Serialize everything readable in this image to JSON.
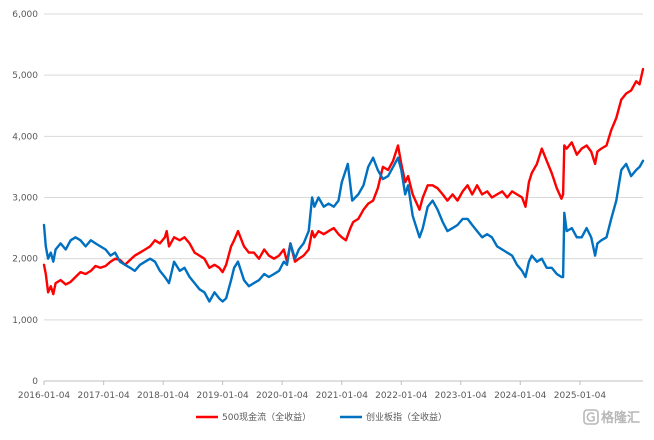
{
  "chart_data": {
    "type": "line",
    "title": "",
    "xlabel": "",
    "ylabel": "",
    "x_tick_labels": [
      "2016-01-04",
      "2017-01-04",
      "2018-01-04",
      "2019-01-04",
      "2020-01-04",
      "2021-01-04",
      "2022-01-04",
      "2023-01-04",
      "2024-01-04",
      "2025-01-04"
    ],
    "y_tick_labels": [
      "0",
      "1,000",
      "2,000",
      "3,000",
      "4,000",
      "5,000",
      "6,000"
    ],
    "ylim": [
      0,
      6000
    ],
    "xlim": [
      "2016-01-04",
      "2026-01-26"
    ],
    "grid": "horizontal",
    "legend_position": "bottom",
    "series": [
      {
        "name": "500现金流（全收益）",
        "color": "#ff0000",
        "points": [
          [
            "2016-01-04",
            1900
          ],
          [
            "2016-01-15",
            1750
          ],
          [
            "2016-01-29",
            1450
          ],
          [
            "2016-02-15",
            1550
          ],
          [
            "2016-03-01",
            1420
          ],
          [
            "2016-03-15",
            1600
          ],
          [
            "2016-04-15",
            1650
          ],
          [
            "2016-05-16",
            1580
          ],
          [
            "2016-06-15",
            1620
          ],
          [
            "2016-07-15",
            1700
          ],
          [
            "2016-08-15",
            1780
          ],
          [
            "2016-09-15",
            1750
          ],
          [
            "2016-10-17",
            1800
          ],
          [
            "2016-11-15",
            1880
          ],
          [
            "2016-12-15",
            1850
          ],
          [
            "2017-01-16",
            1880
          ],
          [
            "2017-02-15",
            1950
          ],
          [
            "2017-03-15",
            2000
          ],
          [
            "2017-04-14",
            1980
          ],
          [
            "2017-05-15",
            1900
          ],
          [
            "2017-06-15",
            1980
          ],
          [
            "2017-07-14",
            2050
          ],
          [
            "2017-08-15",
            2100
          ],
          [
            "2017-09-15",
            2150
          ],
          [
            "2017-10-16",
            2200
          ],
          [
            "2017-11-15",
            2300
          ],
          [
            "2017-12-15",
            2250
          ],
          [
            "2018-01-15",
            2350
          ],
          [
            "2018-01-26",
            2450
          ],
          [
            "2018-02-09",
            2200
          ],
          [
            "2018-03-12",
            2350
          ],
          [
            "2018-04-16",
            2300
          ],
          [
            "2018-05-15",
            2350
          ],
          [
            "2018-06-15",
            2250
          ],
          [
            "2018-07-16",
            2100
          ],
          [
            "2018-08-15",
            2050
          ],
          [
            "2018-09-14",
            2000
          ],
          [
            "2018-10-15",
            1850
          ],
          [
            "2018-11-15",
            1900
          ],
          [
            "2018-12-14",
            1850
          ],
          [
            "2019-01-04",
            1780
          ],
          [
            "2019-01-25",
            1900
          ],
          [
            "2019-02-25",
            2200
          ],
          [
            "2019-03-15",
            2300
          ],
          [
            "2019-04-08",
            2450
          ],
          [
            "2019-05-15",
            2200
          ],
          [
            "2019-06-14",
            2100
          ],
          [
            "2019-07-15",
            2100
          ],
          [
            "2019-08-15",
            2000
          ],
          [
            "2019-09-16",
            2150
          ],
          [
            "2019-10-15",
            2050
          ],
          [
            "2019-11-15",
            2000
          ],
          [
            "2019-12-16",
            2050
          ],
          [
            "2020-01-14",
            2150
          ],
          [
            "2020-02-03",
            1950
          ],
          [
            "2020-02-24",
            2250
          ],
          [
            "2020-03-23",
            1950
          ],
          [
            "2020-04-15",
            2000
          ],
          [
            "2020-05-15",
            2050
          ],
          [
            "2020-06-15",
            2150
          ],
          [
            "2020-07-06",
            2450
          ],
          [
            "2020-07-20",
            2350
          ],
          [
            "2020-08-14",
            2450
          ],
          [
            "2020-09-15",
            2400
          ],
          [
            "2020-10-15",
            2450
          ],
          [
            "2020-11-16",
            2500
          ],
          [
            "2020-12-15",
            2400
          ],
          [
            "2021-01-04",
            2350
          ],
          [
            "2021-01-29",
            2300
          ],
          [
            "2021-02-26",
            2500
          ],
          [
            "2021-03-15",
            2600
          ],
          [
            "2021-04-15",
            2650
          ],
          [
            "2021-05-17",
            2800
          ],
          [
            "2021-06-15",
            2900
          ],
          [
            "2021-07-15",
            2950
          ],
          [
            "2021-08-13",
            3150
          ],
          [
            "2021-09-13",
            3500
          ],
          [
            "2021-10-15",
            3450
          ],
          [
            "2021-11-15",
            3600
          ],
          [
            "2021-12-15",
            3850
          ],
          [
            "2022-01-04",
            3550
          ],
          [
            "2022-01-28",
            3250
          ],
          [
            "2022-02-15",
            3350
          ],
          [
            "2022-03-15",
            3050
          ],
          [
            "2022-04-26",
            2800
          ],
          [
            "2022-05-16",
            3000
          ],
          [
            "2022-06-15",
            3200
          ],
          [
            "2022-07-15",
            3200
          ],
          [
            "2022-08-15",
            3150
          ],
          [
            "2022-09-15",
            3050
          ],
          [
            "2022-10-14",
            2950
          ],
          [
            "2022-11-15",
            3050
          ],
          [
            "2022-12-15",
            2950
          ],
          [
            "2023-01-16",
            3100
          ],
          [
            "2023-02-15",
            3200
          ],
          [
            "2023-03-15",
            3050
          ],
          [
            "2023-04-14",
            3200
          ],
          [
            "2023-05-15",
            3050
          ],
          [
            "2023-06-15",
            3100
          ],
          [
            "2023-07-14",
            3000
          ],
          [
            "2023-08-15",
            3050
          ],
          [
            "2023-09-15",
            3100
          ],
          [
            "2023-10-16",
            3000
          ],
          [
            "2023-11-15",
            3100
          ],
          [
            "2023-12-15",
            3050
          ],
          [
            "2024-01-15",
            3000
          ],
          [
            "2024-02-05",
            2850
          ],
          [
            "2024-02-26",
            3250
          ],
          [
            "2024-03-15",
            3400
          ],
          [
            "2024-04-15",
            3550
          ],
          [
            "2024-05-15",
            3800
          ],
          [
            "2024-06-14",
            3600
          ],
          [
            "2024-07-15",
            3400
          ],
          [
            "2024-08-15",
            3150
          ],
          [
            "2024-09-13",
            2980
          ],
          [
            "2024-09-23",
            3050
          ],
          [
            "2024-09-30",
            3850
          ],
          [
            "2024-10-15",
            3800
          ],
          [
            "2024-11-15",
            3900
          ],
          [
            "2024-12-16",
            3700
          ],
          [
            "2025-01-15",
            3800
          ],
          [
            "2025-02-14",
            3850
          ],
          [
            "2025-03-14",
            3750
          ],
          [
            "2025-04-07",
            3550
          ],
          [
            "2025-04-21",
            3750
          ],
          [
            "2025-05-15",
            3800
          ],
          [
            "2025-06-16",
            3850
          ],
          [
            "2025-07-15",
            4100
          ],
          [
            "2025-08-15",
            4300
          ],
          [
            "2025-09-15",
            4600
          ],
          [
            "2025-10-15",
            4700
          ],
          [
            "2025-11-14",
            4750
          ],
          [
            "2025-12-15",
            4900
          ],
          [
            "2026-01-05",
            4850
          ],
          [
            "2026-01-26",
            5100
          ]
        ]
      },
      {
        "name": "创业板指（全收益）",
        "color": "#0070c0",
        "points": [
          [
            "2016-01-04",
            2550
          ],
          [
            "2016-01-15",
            2200
          ],
          [
            "2016-01-29",
            2000
          ],
          [
            "2016-02-15",
            2100
          ],
          [
            "2016-03-01",
            1950
          ],
          [
            "2016-03-15",
            2150
          ],
          [
            "2016-04-15",
            2250
          ],
          [
            "2016-05-16",
            2150
          ],
          [
            "2016-06-15",
            2300
          ],
          [
            "2016-07-15",
            2350
          ],
          [
            "2016-08-15",
            2300
          ],
          [
            "2016-09-15",
            2200
          ],
          [
            "2016-10-17",
            2300
          ],
          [
            "2016-11-15",
            2250
          ],
          [
            "2016-12-15",
            2200
          ],
          [
            "2017-01-16",
            2150
          ],
          [
            "2017-02-15",
            2050
          ],
          [
            "2017-03-15",
            2100
          ],
          [
            "2017-04-14",
            1950
          ],
          [
            "2017-05-15",
            1900
          ],
          [
            "2017-06-15",
            1850
          ],
          [
            "2017-07-14",
            1800
          ],
          [
            "2017-08-15",
            1900
          ],
          [
            "2017-09-15",
            1950
          ],
          [
            "2017-10-16",
            2000
          ],
          [
            "2017-11-15",
            1950
          ],
          [
            "2017-12-15",
            1800
          ],
          [
            "2018-01-15",
            1700
          ],
          [
            "2018-02-09",
            1600
          ],
          [
            "2018-03-12",
            1950
          ],
          [
            "2018-04-16",
            1800
          ],
          [
            "2018-05-15",
            1850
          ],
          [
            "2018-06-15",
            1700
          ],
          [
            "2018-07-16",
            1600
          ],
          [
            "2018-08-15",
            1500
          ],
          [
            "2018-09-14",
            1450
          ],
          [
            "2018-10-15",
            1300
          ],
          [
            "2018-11-15",
            1450
          ],
          [
            "2018-12-14",
            1350
          ],
          [
            "2019-01-04",
            1300
          ],
          [
            "2019-01-25",
            1350
          ],
          [
            "2019-02-25",
            1650
          ],
          [
            "2019-03-15",
            1850
          ],
          [
            "2019-04-08",
            1950
          ],
          [
            "2019-05-15",
            1650
          ],
          [
            "2019-06-14",
            1550
          ],
          [
            "2019-07-15",
            1600
          ],
          [
            "2019-08-15",
            1650
          ],
          [
            "2019-09-16",
            1750
          ],
          [
            "2019-10-15",
            1700
          ],
          [
            "2019-11-15",
            1750
          ],
          [
            "2019-12-16",
            1800
          ],
          [
            "2020-01-14",
            1950
          ],
          [
            "2020-02-03",
            1900
          ],
          [
            "2020-02-24",
            2250
          ],
          [
            "2020-03-23",
            2000
          ],
          [
            "2020-04-15",
            2150
          ],
          [
            "2020-05-15",
            2250
          ],
          [
            "2020-06-15",
            2450
          ],
          [
            "2020-07-06",
            3000
          ],
          [
            "2020-07-20",
            2850
          ],
          [
            "2020-08-14",
            3000
          ],
          [
            "2020-09-15",
            2850
          ],
          [
            "2020-10-15",
            2900
          ],
          [
            "2020-11-16",
            2850
          ],
          [
            "2020-12-15",
            2950
          ],
          [
            "2021-01-04",
            3250
          ],
          [
            "2021-02-10",
            3550
          ],
          [
            "2021-03-09",
            2950
          ],
          [
            "2021-04-15",
            3050
          ],
          [
            "2021-05-17",
            3200
          ],
          [
            "2021-06-15",
            3500
          ],
          [
            "2021-07-15",
            3650
          ],
          [
            "2021-08-13",
            3450
          ],
          [
            "2021-09-13",
            3300
          ],
          [
            "2021-10-15",
            3350
          ],
          [
            "2021-11-15",
            3500
          ],
          [
            "2021-12-15",
            3650
          ],
          [
            "2022-01-04",
            3450
          ],
          [
            "2022-01-28",
            3050
          ],
          [
            "2022-02-15",
            3200
          ],
          [
            "2022-03-15",
            2700
          ],
          [
            "2022-04-26",
            2350
          ],
          [
            "2022-05-16",
            2500
          ],
          [
            "2022-06-15",
            2850
          ],
          [
            "2022-07-15",
            2950
          ],
          [
            "2022-08-15",
            2800
          ],
          [
            "2022-09-15",
            2600
          ],
          [
            "2022-10-14",
            2450
          ],
          [
            "2022-11-15",
            2500
          ],
          [
            "2022-12-15",
            2550
          ],
          [
            "2023-01-16",
            2650
          ],
          [
            "2023-02-15",
            2650
          ],
          [
            "2023-03-15",
            2550
          ],
          [
            "2023-04-14",
            2450
          ],
          [
            "2023-05-15",
            2350
          ],
          [
            "2023-06-15",
            2400
          ],
          [
            "2023-07-14",
            2350
          ],
          [
            "2023-08-15",
            2200
          ],
          [
            "2023-09-15",
            2150
          ],
          [
            "2023-10-16",
            2100
          ],
          [
            "2023-11-15",
            2050
          ],
          [
            "2023-12-15",
            1900
          ],
          [
            "2024-01-15",
            1800
          ],
          [
            "2024-02-05",
            1700
          ],
          [
            "2024-02-26",
            1950
          ],
          [
            "2024-03-15",
            2050
          ],
          [
            "2024-04-15",
            1950
          ],
          [
            "2024-05-15",
            2000
          ],
          [
            "2024-06-14",
            1850
          ],
          [
            "2024-07-15",
            1850
          ],
          [
            "2024-08-15",
            1750
          ],
          [
            "2024-09-13",
            1700
          ],
          [
            "2024-09-23",
            1700
          ],
          [
            "2024-09-30",
            2750
          ],
          [
            "2024-10-15",
            2450
          ],
          [
            "2024-11-15",
            2500
          ],
          [
            "2024-12-16",
            2350
          ],
          [
            "2025-01-15",
            2350
          ],
          [
            "2025-02-14",
            2500
          ],
          [
            "2025-03-14",
            2350
          ],
          [
            "2025-04-07",
            2050
          ],
          [
            "2025-04-21",
            2250
          ],
          [
            "2025-05-15",
            2300
          ],
          [
            "2025-06-16",
            2350
          ],
          [
            "2025-07-15",
            2650
          ],
          [
            "2025-08-15",
            2950
          ],
          [
            "2025-09-15",
            3450
          ],
          [
            "2025-10-15",
            3550
          ],
          [
            "2025-11-14",
            3350
          ],
          [
            "2025-12-15",
            3450
          ],
          [
            "2026-01-05",
            3500
          ],
          [
            "2026-01-26",
            3600
          ]
        ]
      }
    ]
  },
  "watermark": {
    "text": "格隆汇"
  }
}
